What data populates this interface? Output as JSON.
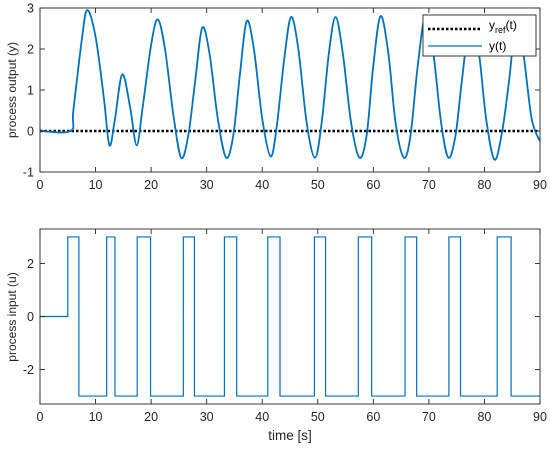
{
  "chart_data": [
    {
      "type": "line",
      "ylabel": "process output (y)",
      "xlabel": "",
      "xlim": [
        0,
        90
      ],
      "ylim": [
        -1,
        3
      ],
      "xticks": [
        "0",
        "10",
        "20",
        "30",
        "40",
        "50",
        "60",
        "70",
        "80",
        "90"
      ],
      "yticks": [
        "-1",
        "0",
        "1",
        "2",
        "3"
      ],
      "grid": false,
      "legend": {
        "placement": "top-right",
        "entries": [
          "y",
          "ref",
          "(t)",
          "y(t)"
        ]
      },
      "series": [
        {
          "name": "y_ref(t)",
          "style": "dotted",
          "color": "#000000",
          "x": [
            0,
            90
          ],
          "y": [
            0,
            0
          ]
        },
        {
          "name": "y(t)",
          "style": "solid",
          "color": "#0072BD",
          "x": [
            0,
            5.5,
            6,
            7.5,
            8.5,
            10,
            11.5,
            12.5,
            13.5,
            14.8,
            16.2,
            17.4,
            18.5,
            20,
            21.2,
            22.5,
            24,
            25.4,
            26.7,
            28,
            29.2,
            30.5,
            32,
            33.5,
            34.8,
            36,
            37.2,
            38.5,
            40,
            41.5,
            42.6,
            44,
            45.2,
            46.5,
            48,
            49.5,
            50.7,
            52,
            53.2,
            54.5,
            56,
            57.5,
            58.8,
            60,
            61.3,
            62.7,
            64,
            65.5,
            66.7,
            68,
            69.4,
            70.8,
            72.2,
            73.5,
            74.8,
            76,
            77.5,
            79,
            80.3,
            81.8,
            83.2,
            84.5,
            85.7,
            87,
            88.5,
            90
          ],
          "y": [
            0,
            0,
            0.5,
            2.2,
            2.95,
            2.3,
            0.8,
            -0.35,
            0.3,
            1.38,
            0.6,
            -0.35,
            0.6,
            2.1,
            2.72,
            2.0,
            0.4,
            -0.65,
            -0.1,
            1.3,
            2.52,
            1.9,
            0.3,
            -0.65,
            -0.1,
            1.4,
            2.68,
            2.0,
            0.3,
            -0.62,
            0.1,
            1.8,
            2.78,
            2.0,
            0.2,
            -0.65,
            0.2,
            1.9,
            2.78,
            1.9,
            0.2,
            -0.65,
            -0.1,
            1.6,
            2.8,
            1.9,
            0.2,
            -0.65,
            -0.1,
            1.6,
            2.82,
            1.9,
            0.2,
            -0.65,
            -0.1,
            1.3,
            2.78,
            1.9,
            0.3,
            -0.7,
            0.0,
            1.3,
            2.72,
            1.9,
            0.3,
            -0.25
          ]
        }
      ]
    },
    {
      "type": "line",
      "ylabel": "process input (u)",
      "xlabel": "time [s]",
      "xlim": [
        0,
        90
      ],
      "ylim": [
        -3.3,
        3.3
      ],
      "xticks": [
        "0",
        "10",
        "20",
        "30",
        "40",
        "50",
        "60",
        "70",
        "80",
        "90"
      ],
      "yticks": [
        "-2",
        "0",
        "2"
      ],
      "grid": false,
      "series": [
        {
          "name": "u(t)",
          "style": "step",
          "color": "#0072BD",
          "x": [
            0,
            5,
            5,
            7,
            7,
            12,
            12,
            13.5,
            13.5,
            17.5,
            17.5,
            19.9,
            19.9,
            25.8,
            25.8,
            27.8,
            27.8,
            33.2,
            33.2,
            35.4,
            35.4,
            41,
            41,
            43.2,
            43.2,
            49.4,
            49.4,
            51.4,
            51.4,
            57.3,
            57.3,
            59.7,
            59.7,
            65.7,
            65.7,
            67.8,
            67.8,
            73.6,
            73.6,
            75.7,
            75.7,
            82.3,
            82.3,
            84.8,
            84.8,
            90
          ],
          "y": [
            0,
            0,
            3,
            3,
            -3,
            -3,
            3,
            3,
            -3,
            -3,
            3,
            3,
            -3,
            -3,
            3,
            3,
            -3,
            -3,
            3,
            3,
            -3,
            -3,
            3,
            3,
            -3,
            -3,
            3,
            3,
            -3,
            -3,
            3,
            3,
            -3,
            -3,
            3,
            3,
            -3,
            -3,
            3,
            3,
            -3,
            -3,
            3,
            3,
            -3,
            -3
          ]
        }
      ]
    }
  ]
}
